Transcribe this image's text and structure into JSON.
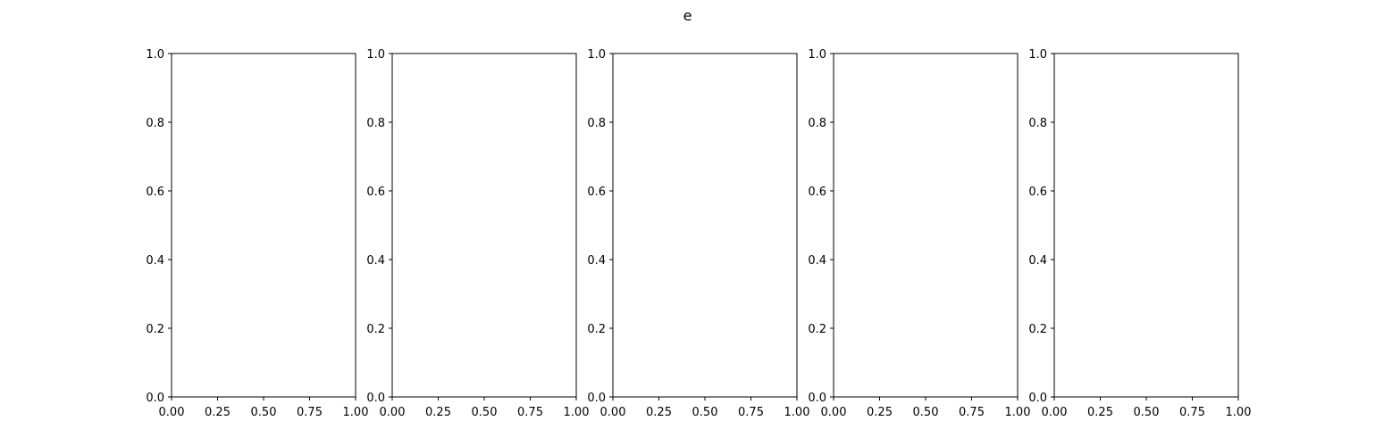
{
  "figure": {
    "title": "e"
  },
  "chart_data": [
    {
      "type": "line",
      "title": "",
      "xlabel": "",
      "ylabel": "",
      "xlim": [
        0.0,
        1.0
      ],
      "ylim": [
        0.0,
        1.0
      ],
      "xticks": [
        "0.00",
        "0.25",
        "0.50",
        "0.75",
        "1.00"
      ],
      "yticks": [
        "0.0",
        "0.2",
        "0.4",
        "0.6",
        "0.8",
        "1.0"
      ],
      "grid": false,
      "series": []
    },
    {
      "type": "line",
      "title": "",
      "xlabel": "",
      "ylabel": "",
      "xlim": [
        0.0,
        1.0
      ],
      "ylim": [
        0.0,
        1.0
      ],
      "xticks": [
        "0.00",
        "0.25",
        "0.50",
        "0.75",
        "1.00"
      ],
      "yticks": [
        "0.0",
        "0.2",
        "0.4",
        "0.6",
        "0.8",
        "1.0"
      ],
      "grid": false,
      "series": []
    },
    {
      "type": "line",
      "title": "",
      "xlabel": "",
      "ylabel": "",
      "xlim": [
        0.0,
        1.0
      ],
      "ylim": [
        0.0,
        1.0
      ],
      "xticks": [
        "0.00",
        "0.25",
        "0.50",
        "0.75",
        "1.00"
      ],
      "yticks": [
        "0.0",
        "0.2",
        "0.4",
        "0.6",
        "0.8",
        "1.0"
      ],
      "grid": false,
      "series": []
    },
    {
      "type": "line",
      "title": "",
      "xlabel": "",
      "ylabel": "",
      "xlim": [
        0.0,
        1.0
      ],
      "ylim": [
        0.0,
        1.0
      ],
      "xticks": [
        "0.00",
        "0.25",
        "0.50",
        "0.75",
        "1.00"
      ],
      "yticks": [
        "0.0",
        "0.2",
        "0.4",
        "0.6",
        "0.8",
        "1.0"
      ],
      "grid": false,
      "series": []
    },
    {
      "type": "line",
      "title": "",
      "xlabel": "",
      "ylabel": "",
      "xlim": [
        0.0,
        1.0
      ],
      "ylim": [
        0.0,
        1.0
      ],
      "xticks": [
        "0.00",
        "0.25",
        "0.50",
        "0.75",
        "1.00"
      ],
      "yticks": [
        "0.0",
        "0.2",
        "0.4",
        "0.6",
        "0.8",
        "1.0"
      ],
      "grid": false,
      "series": []
    }
  ]
}
